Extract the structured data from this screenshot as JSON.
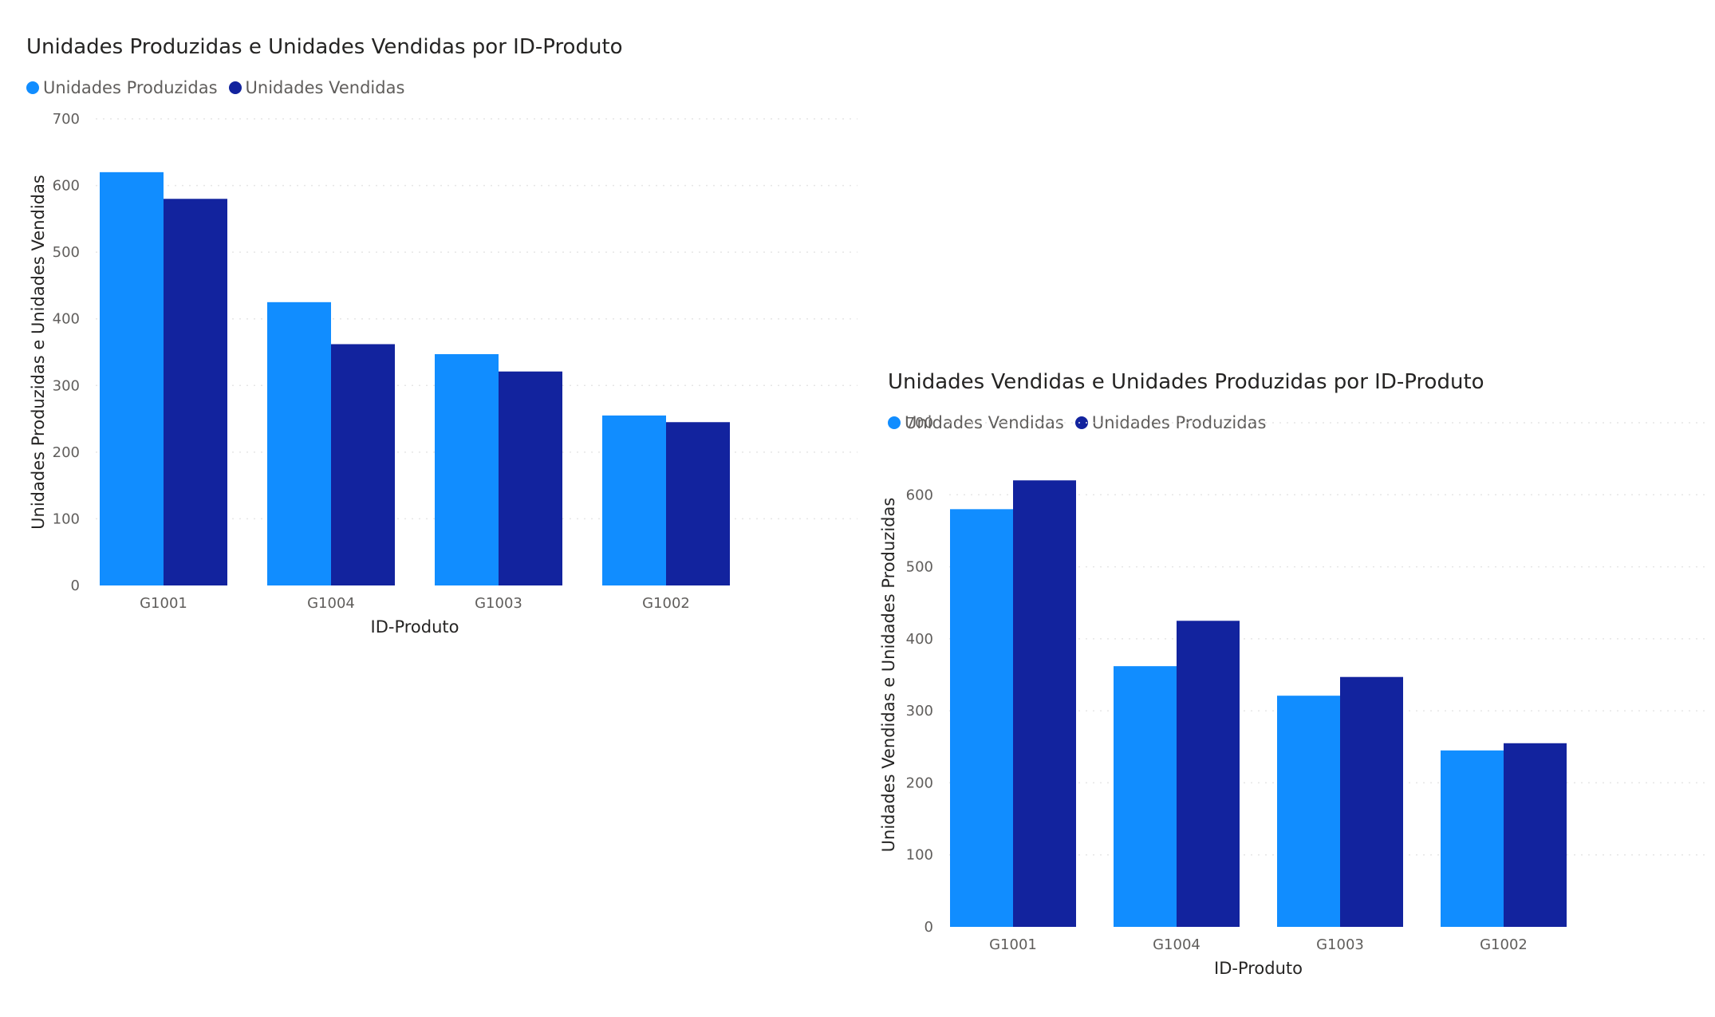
{
  "colors": {
    "light_blue": "#118DFF",
    "dark_blue": "#12239E"
  },
  "chart_data": [
    {
      "type": "bar",
      "title": "Unidades Produzidas e Unidades Vendidas por ID-Produto",
      "xlabel": "ID-Produto",
      "ylabel": "Unidades Produzidas e Unidades Vendidas",
      "categories": [
        "G1001",
        "G1004",
        "G1003",
        "G1002"
      ],
      "series": [
        {
          "name": "Unidades Produzidas",
          "color": "#118DFF",
          "values": [
            620,
            425,
            347,
            255
          ]
        },
        {
          "name": "Unidades Vendidas",
          "color": "#12239E",
          "values": [
            580,
            362,
            321,
            245
          ]
        }
      ],
      "ylim": [
        0,
        700
      ],
      "yticks": [
        "0",
        "100",
        "200",
        "300",
        "400",
        "500",
        "600",
        "700"
      ],
      "grid": true,
      "legend_position": "top-left"
    },
    {
      "type": "bar",
      "title": "Unidades Vendidas e Unidades Produzidas por ID-Produto",
      "xlabel": "ID-Produto",
      "ylabel": "Unidades Vendidas e Unidades Produzidas",
      "categories": [
        "G1001",
        "G1004",
        "G1003",
        "G1002"
      ],
      "series": [
        {
          "name": "Unidades Vendidas",
          "color": "#118DFF",
          "values": [
            580,
            362,
            321,
            245
          ]
        },
        {
          "name": "Unidades Produzidas",
          "color": "#12239E",
          "values": [
            620,
            425,
            347,
            255
          ]
        }
      ],
      "ylim": [
        0,
        700
      ],
      "yticks": [
        "0",
        "100",
        "200",
        "300",
        "400",
        "500",
        "600",
        "700"
      ],
      "grid": true,
      "legend_position": "top-left"
    }
  ]
}
